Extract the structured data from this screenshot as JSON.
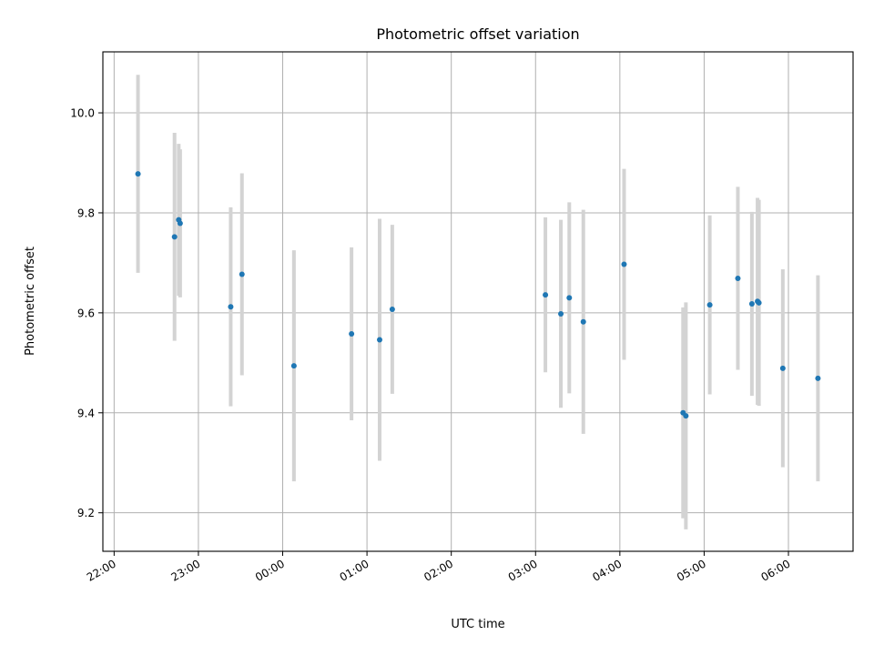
{
  "chart_data": {
    "type": "scatter",
    "title": "Photometric offset variation",
    "xlabel": "UTC time",
    "ylabel": "Photometric offset",
    "x_tick_labels": [
      "22:00",
      "23:00",
      "00:00",
      "01:00",
      "02:00",
      "03:00",
      "04:00",
      "05:00",
      "06:00"
    ],
    "y_tick_labels": [
      "9.2",
      "9.4",
      "9.6",
      "9.8",
      "10.0"
    ],
    "y_ticks": [
      9.2,
      9.4,
      9.6,
      9.8,
      10.0
    ],
    "xlim": [
      "21:52",
      "06:46"
    ],
    "ylim": [
      9.123,
      10.122
    ],
    "grid": true,
    "point_color": "#1f77b4",
    "errorbar_color": "#d3d3d3",
    "points": [
      {
        "x": "22:17",
        "y": 9.878,
        "err": 0.198
      },
      {
        "x": "22:43",
        "y": 9.752,
        "err": 0.208
      },
      {
        "x": "22:46",
        "y": 9.786,
        "err": 0.152
      },
      {
        "x": "22:47",
        "y": 9.779,
        "err": 0.148
      },
      {
        "x": "23:23",
        "y": 9.612,
        "err": 0.199
      },
      {
        "x": "23:31",
        "y": 9.677,
        "err": 0.202
      },
      {
        "x": "00:08",
        "y": 9.494,
        "err": 0.231
      },
      {
        "x": "00:49",
        "y": 9.558,
        "err": 0.173
      },
      {
        "x": "01:09",
        "y": 9.546,
        "err": 0.242
      },
      {
        "x": "01:18",
        "y": 9.607,
        "err": 0.169
      },
      {
        "x": "03:07",
        "y": 9.636,
        "err": 0.155
      },
      {
        "x": "03:18",
        "y": 9.598,
        "err": 0.188
      },
      {
        "x": "03:24",
        "y": 9.63,
        "err": 0.191
      },
      {
        "x": "03:34",
        "y": 9.582,
        "err": 0.224
      },
      {
        "x": "04:03",
        "y": 9.697,
        "err": 0.191
      },
      {
        "x": "04:45",
        "y": 9.4,
        "err": 0.211
      },
      {
        "x": "04:47",
        "y": 9.394,
        "err": 0.227
      },
      {
        "x": "05:04",
        "y": 9.616,
        "err": 0.179
      },
      {
        "x": "05:24",
        "y": 9.669,
        "err": 0.183
      },
      {
        "x": "05:34",
        "y": 9.618,
        "err": 0.184
      },
      {
        "x": "05:38",
        "y": 9.623,
        "err": 0.207
      },
      {
        "x": "05:39",
        "y": 9.62,
        "err": 0.206
      },
      {
        "x": "05:56",
        "y": 9.489,
        "err": 0.198
      },
      {
        "x": "06:21",
        "y": 9.469,
        "err": 0.206
      }
    ]
  }
}
